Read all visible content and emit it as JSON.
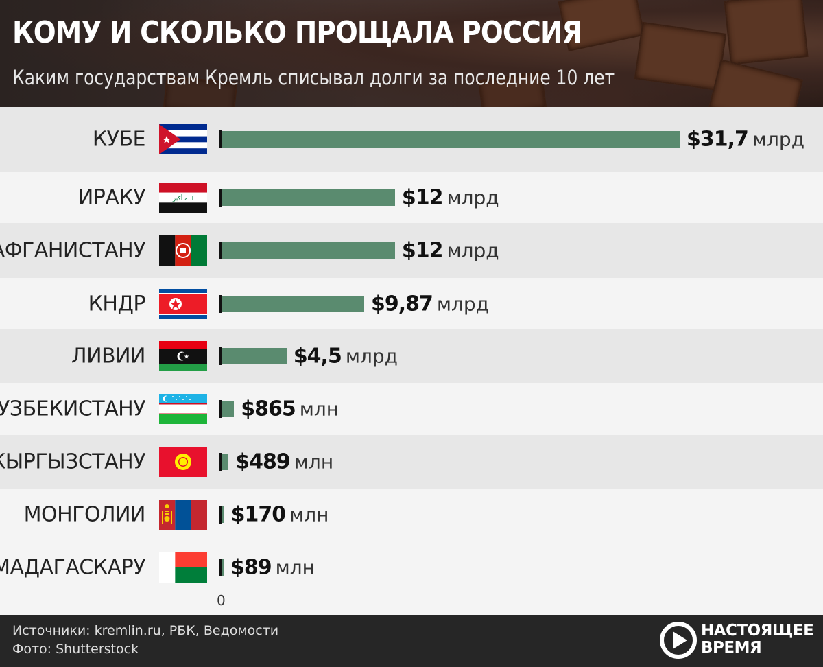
{
  "header": {
    "title": "КОМУ И СКОЛЬКО ПРОЩАЛА РОССИЯ",
    "subtitle": "Каким государствам Кремль списывал долги за последние 10 лет"
  },
  "chart_data": {
    "type": "bar",
    "orientation": "horizontal",
    "unit": "USD",
    "categories": [
      "КУБЕ",
      "ИРАКУ",
      "АФГАНИСТАНУ",
      "КНДР",
      "ЛИВИИ",
      "УЗБЕКИСТАНУ",
      "КЫРГЫЗСТАНУ",
      "МОНГОЛИИ",
      "МАДАГАСКАРУ"
    ],
    "values_billion_usd": [
      31.7,
      12,
      12,
      9.87,
      4.5,
      0.865,
      0.489,
      0.17,
      0.089
    ],
    "value_labels": [
      {
        "amount": "$31,7",
        "unit": "млрд"
      },
      {
        "amount": "$12",
        "unit": "млрд"
      },
      {
        "amount": "$12",
        "unit": "млрд"
      },
      {
        "amount": "$9,87",
        "unit": "млрд"
      },
      {
        "amount": "$4,5",
        "unit": "млрд"
      },
      {
        "amount": "$865",
        "unit": "млн"
      },
      {
        "amount": "$489",
        "unit": "млн"
      },
      {
        "amount": "$170",
        "unit": "млн"
      },
      {
        "amount": "$89",
        "unit": "млн"
      }
    ],
    "flags": [
      "cuba-flag",
      "iraq-flag",
      "afghanistan-flag",
      "north-korea-flag",
      "libya-flag",
      "uzbekistan-flag",
      "kyrgyzstan-flag",
      "mongolia-flag",
      "madagascar-flag"
    ],
    "x_axis_zero_label": "0",
    "xlim": [
      0,
      31.7
    ],
    "bar_color": "#5a8b6f"
  },
  "footer": {
    "sources": "Источники: kremlin.ru, РБК, Ведомости",
    "photo": "Фото: Shutterstock",
    "logo_line1": "НАСТОЯЩЕЕ",
    "logo_line2": "ВРЕМЯ"
  }
}
